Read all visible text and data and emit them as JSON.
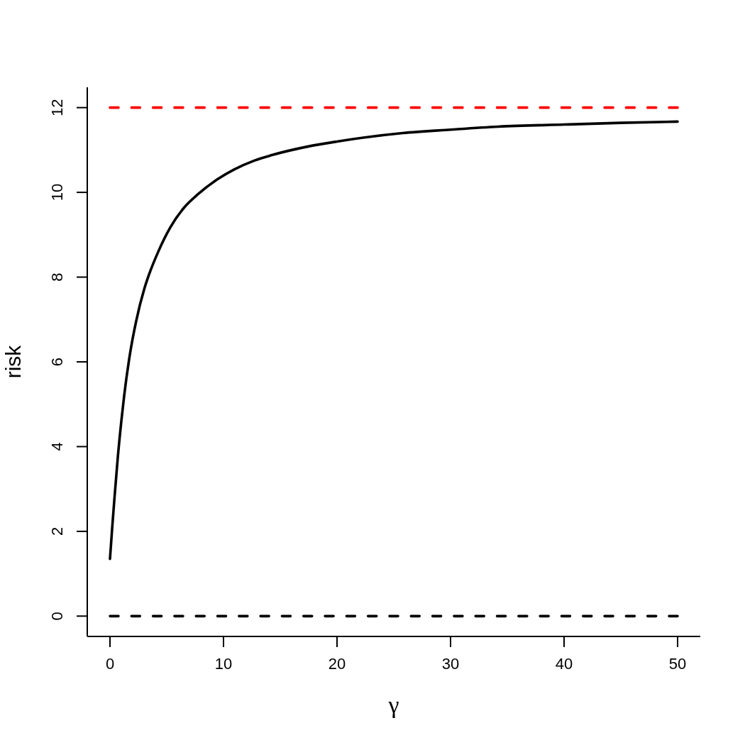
{
  "chart_data": {
    "type": "line",
    "xlabel": "γ",
    "ylabel": "risk",
    "xlim": [
      -2,
      52
    ],
    "ylim": [
      -0.48,
      12.48
    ],
    "xticks": [
      0,
      10,
      20,
      30,
      40,
      50
    ],
    "yticks": [
      0,
      2,
      4,
      6,
      8,
      10,
      12
    ],
    "series": [
      {
        "color": "#000000",
        "x": [
          0,
          0.2,
          0.4,
          0.69,
          1,
          1.25,
          1.77,
          2.29,
          3.02,
          3.44,
          4.27,
          5.31,
          6.56,
          7.81,
          9.48,
          10.94,
          12.71,
          14.27,
          17.4,
          20,
          25.8,
          30,
          34.2,
          40,
          45,
          50
        ],
        "values": [
          1.35,
          2.1,
          2.8,
          3.75,
          4.6,
          5.2,
          6.2,
          6.94,
          7.72,
          8.06,
          8.61,
          9.17,
          9.65,
          9.97,
          10.31,
          10.54,
          10.75,
          10.88,
          11.08,
          11.2,
          11.4,
          11.48,
          11.55,
          11.6,
          11.64,
          11.67
        ]
      },
      {
        "color": "#ff0000",
        "x": [
          0,
          50
        ],
        "values": [
          12,
          12
        ],
        "line_style": "dashed"
      },
      {
        "color": "#000000",
        "x": [
          0,
          50
        ],
        "values": [
          0,
          0
        ],
        "line_style": "dashed"
      }
    ]
  }
}
